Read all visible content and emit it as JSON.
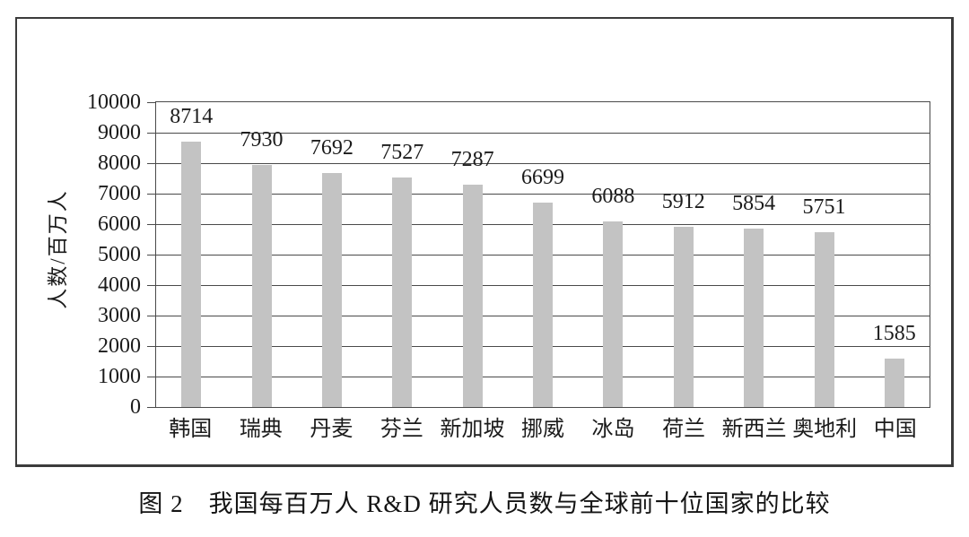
{
  "caption": "图 2　我国每百万人 R&D 研究人员数与全球前十位国家的比较",
  "chart_data": {
    "type": "bar",
    "title": "",
    "categories": [
      "韩国",
      "瑞典",
      "丹麦",
      "芬兰",
      "新加坡",
      "挪威",
      "冰岛",
      "荷兰",
      "新西兰",
      "奥地利",
      "中国"
    ],
    "values": [
      8714,
      7930,
      7692,
      7527,
      7287,
      6699,
      6088,
      5912,
      5854,
      5751,
      1585
    ],
    "data_labels": [
      "8714",
      "7930",
      "7692",
      "7527",
      "7287",
      "6699",
      "6088",
      "5912",
      "5854",
      "5751",
      "1585"
    ],
    "xlabel": "",
    "ylabel": "人数/百万人",
    "ylim": [
      0,
      10000
    ],
    "yticks": [
      0,
      1000,
      2000,
      3000,
      4000,
      5000,
      6000,
      7000,
      8000,
      9000,
      10000
    ],
    "grid": "horizontal",
    "legend_position": "none",
    "bar_color": "#c3c3c3",
    "grid_color": "#4a4a4a",
    "frame_color": "#3b3b3b",
    "text_color": "#1b1b1b"
  }
}
